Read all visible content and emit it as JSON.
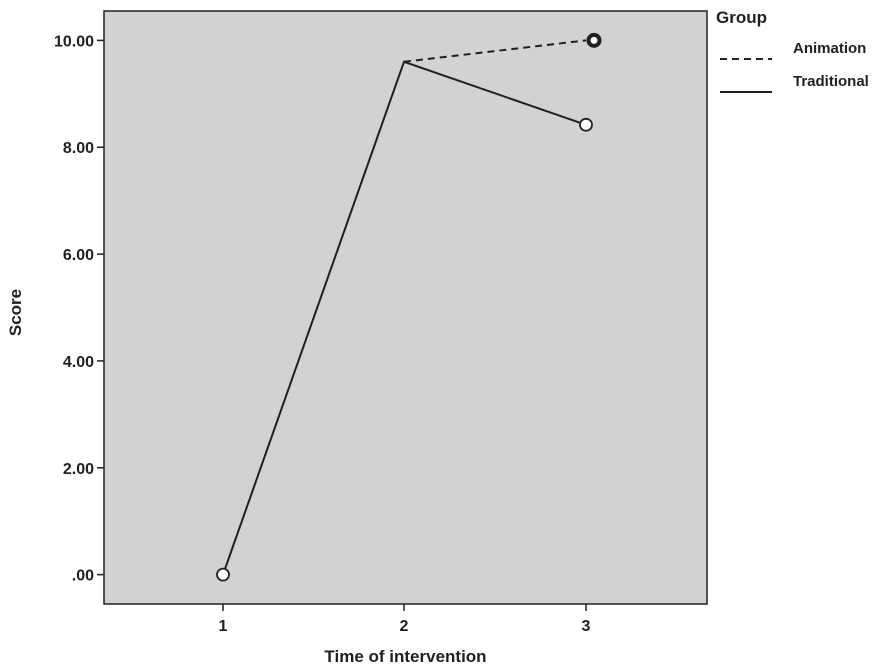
{
  "chart_data": {
    "type": "line",
    "title": "",
    "xlabel": "Time of intervention",
    "ylabel": "Score",
    "x_categories": [
      "1",
      "2",
      "3"
    ],
    "ylim": [
      -0.55,
      10.55
    ],
    "y_ticks": [
      0,
      2,
      4,
      6,
      8,
      10
    ],
    "y_tick_labels": [
      ".00",
      "2.00",
      "4.00",
      "6.00",
      "8.00",
      "10.00"
    ],
    "grid": false,
    "plot_background": "#d1d2d4",
    "line_color": "#231f20",
    "legend": {
      "title": "Group",
      "position": "right"
    },
    "series": [
      {
        "name": "Traditional",
        "style": "solid",
        "points": [
          [
            1,
            0.0
          ],
          [
            2,
            9.6
          ],
          [
            3,
            8.42
          ]
        ]
      },
      {
        "name": "Animation",
        "style": "dashed",
        "points": [
          [
            2,
            9.6
          ],
          [
            3,
            10.0
          ]
        ]
      }
    ],
    "markers": [
      {
        "x": 1,
        "y": 0.0,
        "style": "open-circle"
      },
      {
        "x": 3,
        "y": 8.42,
        "style": "open-circle"
      },
      {
        "x": 3,
        "y": 10.0,
        "style": "bold-circle"
      }
    ]
  }
}
